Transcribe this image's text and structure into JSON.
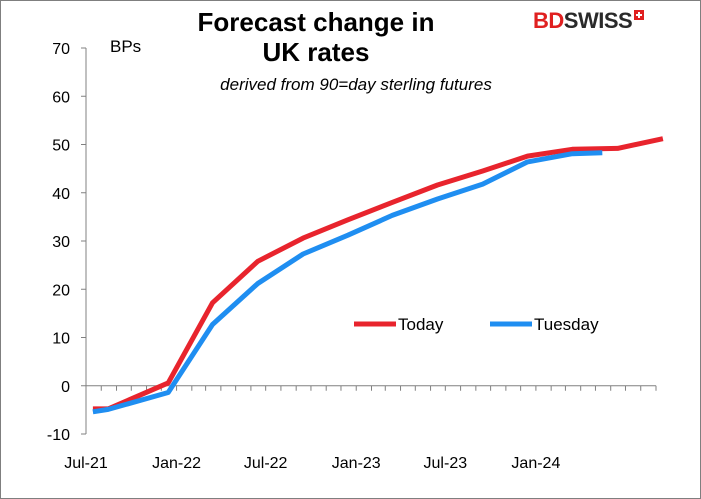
{
  "brand": {
    "name_bd": "BD",
    "name_swiss": "SWISS"
  },
  "chart_data": {
    "type": "line",
    "title": "Forecast change in\nUK rates",
    "title_line1": "Forecast change in",
    "title_line2": "UK rates",
    "subtitle": "derived from 90=day sterling futures",
    "ylabel": "BPs",
    "xlabel": "",
    "ylim": [
      -10,
      70
    ],
    "yticks": [
      -10,
      0,
      10,
      20,
      30,
      40,
      50,
      60,
      70
    ],
    "xlim": [
      "2021-07",
      "2024-09"
    ],
    "xticks": [
      "Jul-21",
      "Jan-22",
      "Jul-22",
      "Jan-23",
      "Jul-23",
      "Jan-24"
    ],
    "legend_position": "center-right",
    "grid": false,
    "series": [
      {
        "name": "Today",
        "color": "#e8242d",
        "x": [
          "2021-07-15",
          "2021-08-15",
          "2021-12-15",
          "2022-03-15",
          "2022-06-15",
          "2022-09-15",
          "2022-12-15",
          "2023-03-15",
          "2023-06-15",
          "2023-09-15",
          "2023-12-15",
          "2024-03-15",
          "2024-06-15",
          "2024-09-15"
        ],
        "values": [
          -4.8,
          -4.8,
          0.6,
          17.2,
          25.8,
          30.6,
          34.4,
          38.0,
          41.6,
          44.5,
          47.6,
          49.0,
          49.2,
          51.2
        ]
      },
      {
        "name": "Tuesday",
        "color": "#1f8ef1",
        "x": [
          "2021-07-15",
          "2021-08-15",
          "2021-12-15",
          "2022-03-15",
          "2022-06-15",
          "2022-09-15",
          "2022-12-15",
          "2023-03-15",
          "2023-06-15",
          "2023-09-15",
          "2023-12-15",
          "2024-03-15",
          "2024-05-15"
        ],
        "values": [
          -5.4,
          -4.9,
          -1.4,
          12.7,
          21.2,
          27.3,
          31.2,
          35.3,
          38.7,
          41.8,
          46.4,
          48.1,
          48.3
        ]
      }
    ]
  }
}
